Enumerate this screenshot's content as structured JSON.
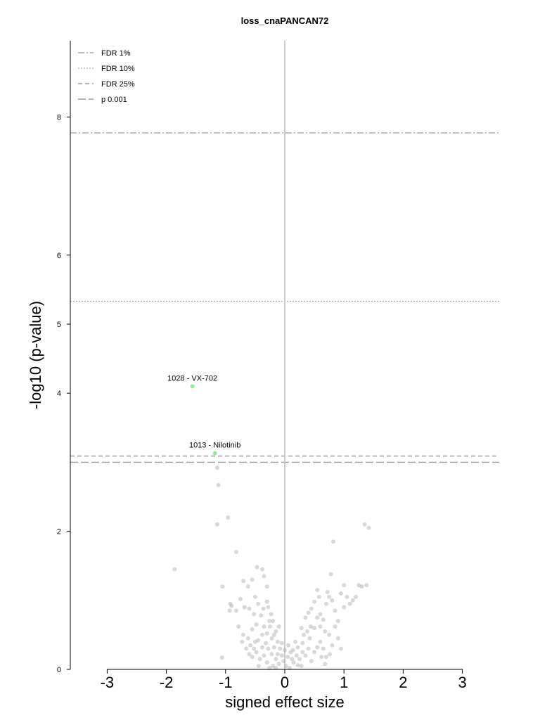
{
  "chart_data": {
    "type": "scatter",
    "title": "loss_cnaPANCAN72",
    "xlabel": "signed effect size",
    "ylabel": "-log10 (p-value)",
    "xlim": [
      -3.6,
      3.6
    ],
    "ylim": [
      0,
      9
    ],
    "xticks": [
      -3,
      -2,
      -1,
      0,
      1,
      2,
      3
    ],
    "yticks": [
      0,
      2,
      4,
      5,
      6,
      8
    ],
    "grid": false,
    "legend_position": "top-left",
    "thresholds": [
      {
        "name": "FDR 1%",
        "y": 7.77,
        "style": "dashdot",
        "color": "#a6a6a6"
      },
      {
        "name": "FDR 10%",
        "y": 5.33,
        "style": "dotted",
        "color": "#b3b3b3"
      },
      {
        "name": "FDR 25%",
        "y": 3.09,
        "style": "dashed",
        "color": "#999999"
      },
      {
        "name": "p 0.001",
        "y": 3.0,
        "style": "longdash",
        "color": "#999999"
      }
    ],
    "highlighted": [
      {
        "label": "1028 - VX-702",
        "x": -1.56,
        "y": 4.1,
        "color": "#90ee90"
      },
      {
        "label": "1013 - Nilotinib",
        "x": -1.18,
        "y": 3.13,
        "color": "#90ee90"
      }
    ],
    "points": [
      [
        -1.86,
        1.45
      ],
      [
        -1.12,
        2.67
      ],
      [
        -1.14,
        2.92
      ],
      [
        -0.96,
        2.2
      ],
      [
        -1.14,
        2.1
      ],
      [
        -0.82,
        1.7
      ],
      [
        -1.05,
        1.2
      ],
      [
        -1.06,
        0.17
      ],
      [
        -0.92,
        0.95
      ],
      [
        -0.9,
        0.92
      ],
      [
        -0.75,
        1.02
      ],
      [
        -0.93,
        0.85
      ],
      [
        -0.7,
        1.28
      ],
      [
        -0.62,
        1.2
      ],
      [
        -0.55,
        1.3
      ],
      [
        -0.47,
        1.48
      ],
      [
        -0.38,
        1.45
      ],
      [
        -0.35,
        1.35
      ],
      [
        -0.3,
        1.2
      ],
      [
        -0.5,
        1.05
      ],
      [
        -0.6,
        0.88
      ],
      [
        -0.52,
        0.8
      ],
      [
        -0.45,
        0.95
      ],
      [
        -0.3,
        0.98
      ],
      [
        -0.28,
        0.9
      ],
      [
        -0.23,
        0.8
      ],
      [
        -0.2,
        0.7
      ],
      [
        -0.35,
        0.62
      ],
      [
        -0.48,
        0.65
      ],
      [
        -0.55,
        0.58
      ],
      [
        -0.62,
        0.45
      ],
      [
        -0.7,
        0.5
      ],
      [
        -0.65,
        0.3
      ],
      [
        -0.58,
        0.35
      ],
      [
        -0.52,
        0.3
      ],
      [
        -0.45,
        0.42
      ],
      [
        -0.38,
        0.5
      ],
      [
        -0.3,
        0.52
      ],
      [
        -0.22,
        0.45
      ],
      [
        -0.15,
        0.55
      ],
      [
        -0.1,
        0.62
      ],
      [
        -0.12,
        0.4
      ],
      [
        -0.08,
        0.3
      ],
      [
        -0.05,
        0.2
      ],
      [
        -0.15,
        0.15
      ],
      [
        -0.22,
        0.22
      ],
      [
        -0.28,
        0.3
      ],
      [
        -0.35,
        0.2
      ],
      [
        -0.42,
        0.15
      ],
      [
        -0.48,
        0.25
      ],
      [
        -0.55,
        0.18
      ],
      [
        -0.3,
        0.1
      ],
      [
        -0.2,
        0.05
      ],
      [
        -0.1,
        0.08
      ],
      [
        -0.02,
        0.12
      ],
      [
        0.02,
        0.05
      ],
      [
        0.05,
        0.18
      ],
      [
        0.1,
        0.25
      ],
      [
        0.15,
        0.1
      ],
      [
        0.2,
        0.2
      ],
      [
        0.22,
        0.32
      ],
      [
        0.18,
        0.4
      ],
      [
        0.25,
        0.15
      ],
      [
        0.28,
        0.05
      ],
      [
        0.3,
        0.25
      ],
      [
        0.35,
        0.2
      ],
      [
        0.4,
        0.3
      ],
      [
        0.42,
        0.45
      ],
      [
        0.38,
        0.55
      ],
      [
        0.32,
        0.5
      ],
      [
        0.28,
        0.6
      ],
      [
        0.45,
        0.12
      ],
      [
        0.5,
        0.25
      ],
      [
        0.55,
        0.32
      ],
      [
        0.6,
        0.4
      ],
      [
        0.65,
        0.3
      ],
      [
        0.7,
        0.18
      ],
      [
        0.75,
        0.5
      ],
      [
        0.8,
        0.35
      ],
      [
        0.85,
        0.62
      ],
      [
        0.9,
        0.45
      ],
      [
        0.95,
        0.3
      ],
      [
        0.5,
        0.6
      ],
      [
        0.55,
        0.75
      ],
      [
        0.6,
        0.8
      ],
      [
        0.65,
        0.72
      ],
      [
        0.7,
        0.95
      ],
      [
        0.75,
        1.05
      ],
      [
        0.8,
        1.0
      ],
      [
        0.85,
        0.85
      ],
      [
        0.9,
        0.7
      ],
      [
        0.95,
        1.1
      ],
      [
        1.0,
        0.9
      ],
      [
        1.05,
        1.05
      ],
      [
        1.1,
        0.95
      ],
      [
        1.15,
        1.0
      ],
      [
        1.2,
        1.05
      ],
      [
        1.25,
        1.22
      ],
      [
        1.3,
        1.2
      ],
      [
        1.0,
        1.22
      ],
      [
        0.45,
        0.88
      ],
      [
        0.4,
        0.82
      ],
      [
        0.35,
        0.75
      ],
      [
        0.6,
        0.62
      ],
      [
        0.68,
        0.55
      ],
      [
        0.72,
        1.12
      ],
      [
        0.78,
        1.38
      ],
      [
        0.82,
        1.85
      ],
      [
        1.35,
        2.1
      ],
      [
        1.42,
        2.05
      ],
      [
        1.38,
        1.22
      ],
      [
        0.55,
        1.15
      ],
      [
        0.58,
        1.05
      ],
      [
        0.5,
        0.98
      ],
      [
        -0.25,
        0.62
      ],
      [
        -0.18,
        0.32
      ],
      [
        -0.12,
        0.22
      ],
      [
        -0.05,
        0.38
      ],
      [
        0.0,
        0.28
      ],
      [
        0.06,
        0.35
      ],
      [
        0.12,
        0.15
      ],
      [
        0.14,
        0.28
      ],
      [
        -0.32,
        0.38
      ],
      [
        -0.38,
        0.32
      ],
      [
        -0.44,
        0.05
      ],
      [
        -0.5,
        0.4
      ],
      [
        -0.26,
        0.02
      ],
      [
        0.08,
        0.02
      ],
      [
        0.22,
        0.06
      ],
      [
        -0.15,
        0.02
      ],
      [
        -0.4,
        0.78
      ],
      [
        -0.36,
        0.88
      ],
      [
        -0.26,
        0.7
      ],
      [
        -0.18,
        0.5
      ],
      [
        0.3,
        0.38
      ],
      [
        0.44,
        0.62
      ],
      [
        -0.68,
        0.9
      ],
      [
        -0.78,
        0.62
      ],
      [
        -0.82,
        0.85
      ],
      [
        -0.72,
        0.4
      ],
      [
        -0.6,
        0.22
      ],
      [
        0.62,
        0.18
      ],
      [
        0.68,
        0.08
      ],
      [
        0.76,
        0.22
      ]
    ]
  }
}
